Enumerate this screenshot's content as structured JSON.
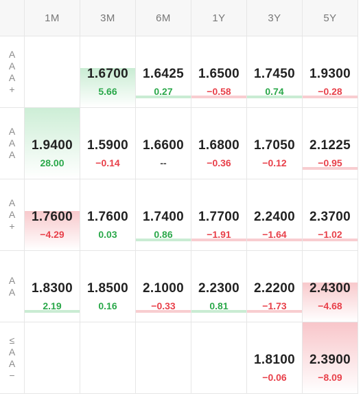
{
  "columns": [
    "1M",
    "3M",
    "6M",
    "1Y",
    "3Y",
    "5Y"
  ],
  "rows": [
    {
      "label": [
        "A",
        "A",
        "A",
        "+"
      ],
      "cells": [
        null,
        {
          "value": "1.6700",
          "change": "5.66",
          "dir": "pos",
          "heat": "strong"
        },
        {
          "value": "1.6425",
          "change": "0.27",
          "dir": "pos",
          "heat": "thin"
        },
        {
          "value": "1.6500",
          "change": "−0.58",
          "dir": "neg",
          "heat": "thin"
        },
        {
          "value": "1.7450",
          "change": "0.74",
          "dir": "pos",
          "heat": "thin"
        },
        {
          "value": "1.9300",
          "change": "−0.28",
          "dir": "neg",
          "heat": "thin"
        }
      ]
    },
    {
      "label": [
        "A",
        "A",
        "A"
      ],
      "cells": [
        {
          "value": "1.9400",
          "change": "28.00",
          "dir": "pos",
          "heat": "full"
        },
        {
          "value": "1.5900",
          "change": "−0.14",
          "dir": "neg",
          "heat": "none"
        },
        {
          "value": "1.6600",
          "change": "--",
          "dir": "neu",
          "heat": "none"
        },
        {
          "value": "1.6800",
          "change": "−0.36",
          "dir": "neg",
          "heat": "none"
        },
        {
          "value": "1.7050",
          "change": "−0.12",
          "dir": "neg",
          "heat": "none"
        },
        {
          "value": "2.1225",
          "change": "−0.95",
          "dir": "neg",
          "heat": "thin"
        }
      ]
    },
    {
      "label": [
        "A",
        "A",
        "+"
      ],
      "cells": [
        {
          "value": "1.7600",
          "change": "−4.29",
          "dir": "neg",
          "heat": "strong"
        },
        {
          "value": "1.7600",
          "change": "0.03",
          "dir": "pos",
          "heat": "none"
        },
        {
          "value": "1.7400",
          "change": "0.86",
          "dir": "pos",
          "heat": "thin"
        },
        {
          "value": "1.7700",
          "change": "−1.91",
          "dir": "neg",
          "heat": "thin"
        },
        {
          "value": "2.2400",
          "change": "−1.64",
          "dir": "neg",
          "heat": "thin"
        },
        {
          "value": "2.3700",
          "change": "−1.02",
          "dir": "neg",
          "heat": "thin"
        }
      ]
    },
    {
      "label": [
        "A",
        "A"
      ],
      "cells": [
        {
          "value": "1.8300",
          "change": "2.19",
          "dir": "pos",
          "heat": "thin"
        },
        {
          "value": "1.8500",
          "change": "0.16",
          "dir": "pos",
          "heat": "none"
        },
        {
          "value": "2.1000",
          "change": "−0.33",
          "dir": "neg",
          "heat": "thin"
        },
        {
          "value": "2.2300",
          "change": "0.81",
          "dir": "pos",
          "heat": "thin"
        },
        {
          "value": "2.2200",
          "change": "−1.73",
          "dir": "neg",
          "heat": "thin"
        },
        {
          "value": "2.4300",
          "change": "−4.68",
          "dir": "neg",
          "heat": "strong"
        }
      ]
    },
    {
      "label": [
        "≤",
        "A",
        "A",
        "−"
      ],
      "cells": [
        null,
        null,
        null,
        null,
        {
          "value": "1.8100",
          "change": "−0.06",
          "dir": "neg",
          "heat": "none"
        },
        {
          "value": "2.3900",
          "change": "−8.09",
          "dir": "neg",
          "heat": "full"
        }
      ]
    }
  ]
}
